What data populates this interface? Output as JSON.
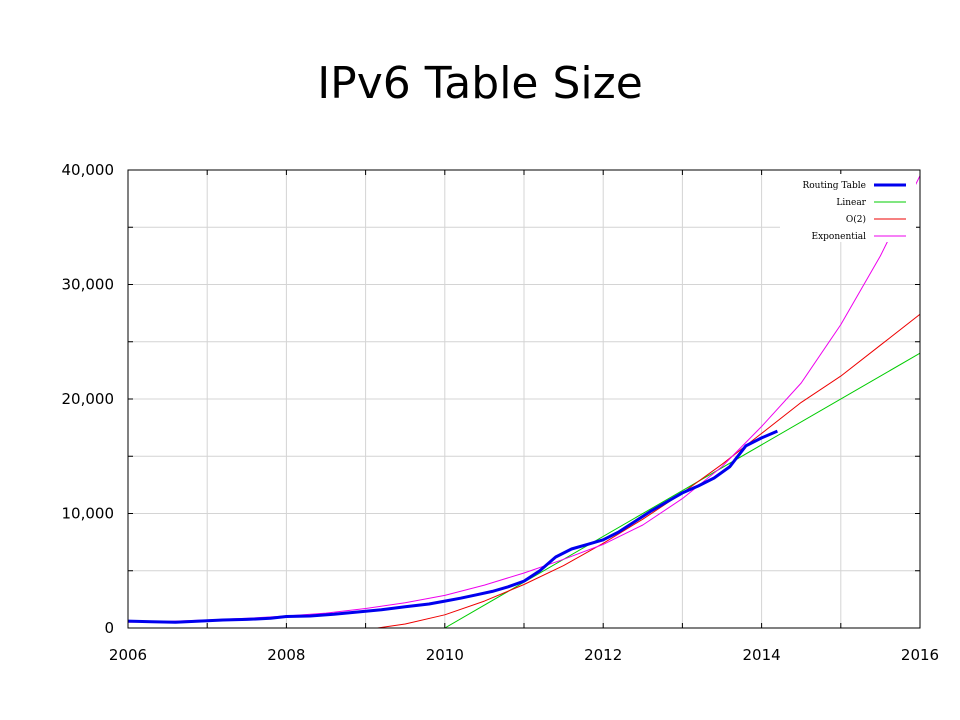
{
  "slide": {
    "title": "IPv6 Table Size"
  },
  "chart_data": {
    "type": "line",
    "title": "IPv6 Table Size",
    "xlabel": "",
    "ylabel": "",
    "xlim": [
      2006,
      2016
    ],
    "ylim": [
      0,
      40000
    ],
    "x_ticks": [
      2006,
      2007,
      2008,
      2009,
      2010,
      2011,
      2012,
      2013,
      2014,
      2015,
      2016
    ],
    "y_ticks": [
      0,
      5000,
      10000,
      15000,
      20000,
      25000,
      30000,
      35000,
      40000
    ],
    "x_tick_labels": [
      {
        "value": 2006,
        "label": "2006"
      },
      {
        "value": 2008,
        "label": "2008"
      },
      {
        "value": 2010,
        "label": "2010"
      },
      {
        "value": 2012,
        "label": "2012"
      },
      {
        "value": 2014,
        "label": "2014"
      },
      {
        "value": 2016,
        "label": "2016"
      }
    ],
    "y_tick_labels": [
      {
        "value": 0,
        "label": "0"
      },
      {
        "value": 10000,
        "label": "10,000"
      },
      {
        "value": 20000,
        "label": "20,000"
      },
      {
        "value": 30000,
        "label": "30,000"
      },
      {
        "value": 40000,
        "label": "40,000"
      }
    ],
    "grid": true,
    "legend_position": "top-right",
    "series": [
      {
        "name": "Routing Table",
        "color": "#0000ee",
        "x": [
          2006.0,
          2006.3,
          2006.6,
          2006.9,
          2007.2,
          2007.5,
          2007.8,
          2008.0,
          2008.3,
          2008.6,
          2008.9,
          2009.2,
          2009.5,
          2009.8,
          2010.0,
          2010.2,
          2010.4,
          2010.6,
          2010.8,
          2011.0,
          2011.2,
          2011.4,
          2011.6,
          2011.8,
          2012.0,
          2012.2,
          2012.4,
          2012.6,
          2012.8,
          2013.0,
          2013.2,
          2013.4,
          2013.6,
          2013.8,
          2014.0,
          2014.2
        ],
        "values": [
          600,
          550,
          500,
          600,
          700,
          750,
          850,
          1000,
          1050,
          1200,
          1400,
          1600,
          1850,
          2100,
          2350,
          2600,
          2900,
          3200,
          3600,
          4100,
          5000,
          6200,
          6900,
          7300,
          7700,
          8400,
          9300,
          10200,
          11000,
          11800,
          12400,
          13100,
          14100,
          15900,
          16600,
          17200
        ]
      },
      {
        "name": "Linear",
        "color": "#00cc00",
        "x": [
          2010.0,
          2016.0
        ],
        "values": [
          0,
          24000
        ]
      },
      {
        "name": "O(2)",
        "color": "#ee0000",
        "x": [
          2009.15,
          2009.5,
          2010.0,
          2010.5,
          2011.0,
          2011.5,
          2012.0,
          2012.5,
          2013.0,
          2013.5,
          2014.0,
          2014.5,
          2015.0,
          2015.5,
          2016.0
        ],
        "values": [
          0,
          350,
          1150,
          2350,
          3800,
          5450,
          7400,
          9500,
          11800,
          14300,
          17000,
          19700,
          22000,
          24700,
          27400
        ]
      },
      {
        "name": "Exponential",
        "color": "#ee00ee",
        "x": [
          2006.0,
          2006.5,
          2007.0,
          2007.5,
          2008.0,
          2008.5,
          2009.0,
          2009.5,
          2010.0,
          2010.5,
          2011.0,
          2011.5,
          2012.0,
          2012.5,
          2013.0,
          2013.5,
          2014.0,
          2014.5,
          2015.0,
          2015.5,
          2016.0
        ],
        "values": [
          500,
          580,
          700,
          850,
          1050,
          1300,
          1700,
          2200,
          2850,
          3750,
          4800,
          6000,
          7300,
          9000,
          11300,
          14100,
          17600,
          21400,
          26500,
          32500,
          39500
        ]
      }
    ]
  }
}
